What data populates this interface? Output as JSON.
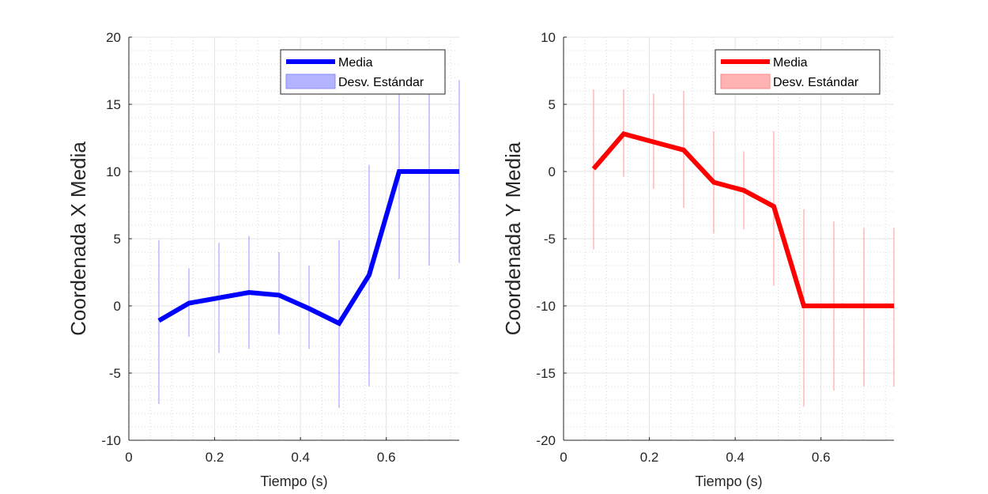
{
  "chart_data": [
    {
      "type": "line",
      "xlabel": "Tiempo (s)",
      "ylabel": "Coordenada X Media",
      "xlim": [
        0,
        0.77
      ],
      "ylim": [
        -10,
        20
      ],
      "xticks": [
        0,
        0.2,
        0.4,
        0.6
      ],
      "xtick_labels": [
        "0",
        "0.2",
        "0.4",
        "0.6"
      ],
      "yticks": [
        -10,
        -5,
        0,
        5,
        10,
        15,
        20
      ],
      "ytick_labels": [
        "-10",
        "-5",
        "0",
        "5",
        "10",
        "15",
        "20"
      ],
      "grid": true,
      "minor_grid": true,
      "legend_position": "top-right",
      "legend": [
        "Media",
        "Desv. Estándar"
      ],
      "color": "#0000ff",
      "band_color": "#b3b3ff",
      "x": [
        0.07,
        0.14,
        0.21,
        0.28,
        0.35,
        0.42,
        0.49,
        0.56,
        0.63,
        0.7,
        0.77
      ],
      "series": [
        {
          "name": "Media",
          "values": [
            -1.1,
            0.2,
            0.6,
            1.0,
            0.8,
            -0.2,
            -1.3,
            2.3,
            10,
            10,
            10
          ]
        },
        {
          "name": "Desv. Estándar",
          "lower": [
            -7.3,
            -2.3,
            -3.5,
            -3.2,
            -2.1,
            -3.2,
            -7.6,
            -6.0,
            2.0,
            3.0,
            3.2
          ],
          "upper": [
            4.9,
            2.8,
            4.7,
            5.2,
            4.0,
            3.0,
            4.9,
            10.5,
            18.0,
            16.8,
            16.8
          ]
        }
      ]
    },
    {
      "type": "line",
      "xlabel": "Tiempo (s)",
      "ylabel": "Coordenada Y Media",
      "xlim": [
        0,
        0.77
      ],
      "ylim": [
        -20,
        10
      ],
      "xticks": [
        0,
        0.2,
        0.4,
        0.6
      ],
      "xtick_labels": [
        "0",
        "0.2",
        "0.4",
        "0.6"
      ],
      "yticks": [
        -20,
        -15,
        -10,
        -5,
        0,
        5,
        10
      ],
      "ytick_labels": [
        "-20",
        "-15",
        "-10",
        "-5",
        "0",
        "5",
        "10"
      ],
      "grid": true,
      "minor_grid": true,
      "legend_position": "top-right",
      "legend": [
        "Media",
        "Desv. Estándar"
      ],
      "color": "#ff0000",
      "band_color": "#ffb3b3",
      "x": [
        0.07,
        0.14,
        0.21,
        0.28,
        0.35,
        0.42,
        0.49,
        0.56,
        0.63,
        0.7,
        0.77
      ],
      "series": [
        {
          "name": "Media",
          "values": [
            0.2,
            2.8,
            2.2,
            1.6,
            -0.8,
            -1.4,
            -2.6,
            -10,
            -10,
            -10,
            -10
          ]
        },
        {
          "name": "Desv. Estándar",
          "lower": [
            -5.8,
            -0.4,
            -1.3,
            -2.7,
            -4.6,
            -4.3,
            -8.5,
            -17.5,
            -16.3,
            -16.0,
            -16.0
          ],
          "upper": [
            6.1,
            6.1,
            5.8,
            6.0,
            3.0,
            1.5,
            3.0,
            -2.8,
            -3.7,
            -4.2,
            -4.2
          ]
        }
      ]
    }
  ]
}
